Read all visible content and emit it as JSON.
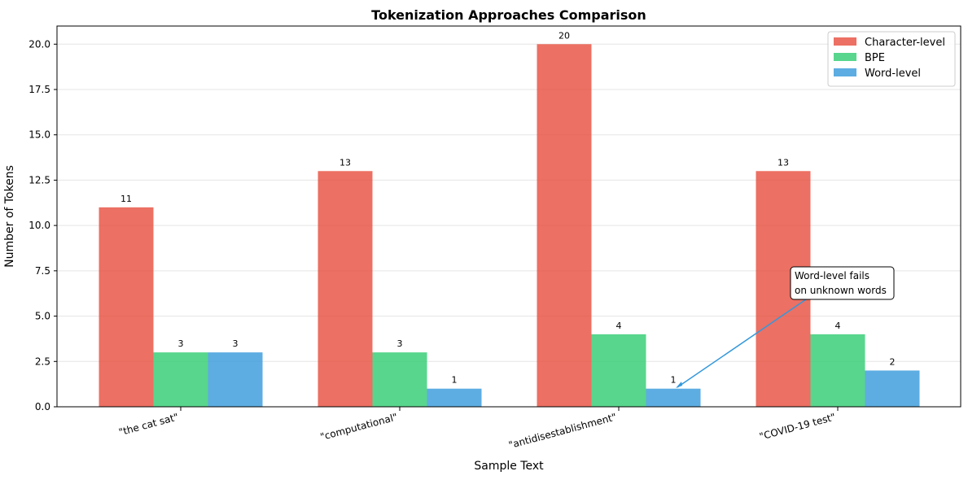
{
  "chart_data": {
    "type": "bar",
    "title": "Tokenization Approaches Comparison",
    "xlabel": "Sample Text",
    "ylabel": "Number of Tokens",
    "categories": [
      "\"the cat sat\"",
      "\"computational\"",
      "\"antidisestablishment\"",
      "\"COVID-19 test\""
    ],
    "series": [
      {
        "name": "Character-level",
        "values": [
          11,
          13,
          20,
          13
        ],
        "color": "#e74c3c"
      },
      {
        "name": "BPE",
        "values": [
          3,
          3,
          4,
          4
        ],
        "color": "#2ecc71"
      },
      {
        "name": "Word-level",
        "values": [
          3,
          1,
          1,
          2
        ],
        "color": "#3498db"
      }
    ],
    "ylim": [
      0,
      21
    ],
    "yticks": [
      "0.0",
      "2.5",
      "5.0",
      "7.5",
      "10.0",
      "12.5",
      "15.0",
      "17.5",
      "20.0"
    ],
    "grid": "y",
    "legend": "top-right",
    "annotation": {
      "text_line1": "Word-level fails",
      "text_line2": "on unknown words",
      "category": "\"antidisestablishment\"",
      "series": "Word-level",
      "arrow_color": "#3498db"
    }
  }
}
